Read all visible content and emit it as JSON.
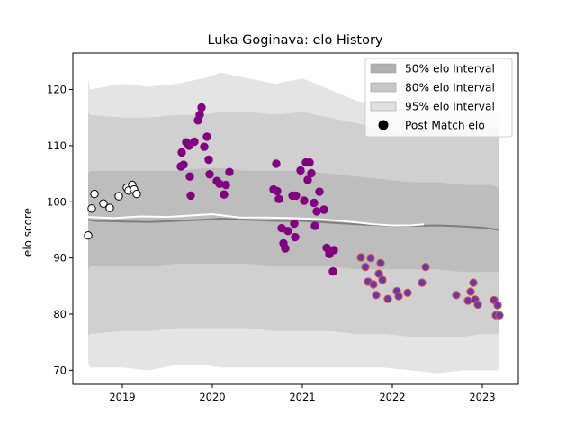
{
  "chart_data": {
    "type": "scatter",
    "title": "Luka Goginava: elo History",
    "xlabel": "",
    "ylabel": "elo score",
    "xlim": [
      2018.45,
      2023.4
    ],
    "ylim": [
      67.5,
      126.5
    ],
    "xticks": [
      2019,
      2020,
      2021,
      2022,
      2023
    ],
    "xtick_labels": [
      "2019",
      "2020",
      "2021",
      "2022",
      "2023"
    ],
    "yticks": [
      70,
      80,
      90,
      100,
      110,
      120
    ],
    "ytick_labels": [
      "70",
      "80",
      "90",
      "100",
      "110",
      "120"
    ],
    "legend": {
      "placement": "top-right",
      "entries": [
        "50% elo Interval",
        "80% elo Interval",
        "95% elo Interval",
        "Post Match elo"
      ]
    },
    "bands": [
      {
        "name": "95% elo Interval",
        "color": "#e4e4e4",
        "x": [
          2018.62,
          2018.64,
          2019.0,
          2019.3,
          2019.6,
          2019.9,
          2020.1,
          2020.4,
          2020.7,
          2021.0,
          2021.3,
          2021.6,
          2021.9,
          2022.2,
          2022.5,
          2022.8,
          2023.0,
          2023.1,
          2023.18
        ],
        "upper": [
          122,
          120,
          121,
          120.5,
          121,
          122,
          123,
          122,
          121,
          122,
          120,
          118,
          117,
          116,
          117,
          116,
          116,
          117,
          116
        ],
        "lower": [
          71.5,
          70.5,
          70.5,
          70,
          71,
          71,
          70.5,
          70.5,
          70.5,
          70.5,
          70.5,
          70.5,
          70.5,
          70,
          69.5,
          70,
          70,
          70,
          70
        ]
      },
      {
        "name": "80% elo Interval",
        "color": "#d0d0d0",
        "x": [
          2018.62,
          2018.64,
          2019.0,
          2019.3,
          2019.6,
          2019.9,
          2020.1,
          2020.4,
          2020.7,
          2021.0,
          2021.3,
          2021.6,
          2021.9,
          2022.2,
          2022.5,
          2022.8,
          2023.0,
          2023.1,
          2023.18
        ],
        "upper": [
          116,
          115.5,
          115,
          115,
          115.5,
          115.5,
          116,
          116,
          115.5,
          116,
          115,
          114,
          113,
          112.5,
          113,
          113,
          113,
          113.5,
          113
        ],
        "lower": [
          76,
          76.5,
          77,
          77,
          77.5,
          77.5,
          77.5,
          77.5,
          77,
          77,
          77,
          76.5,
          76.5,
          76,
          76,
          76,
          76.5,
          76.5,
          76.5
        ]
      },
      {
        "name": "50% elo Interval",
        "color": "#bdbdbd",
        "x": [
          2018.62,
          2018.64,
          2019.0,
          2019.3,
          2019.6,
          2019.9,
          2020.1,
          2020.4,
          2020.7,
          2021.0,
          2021.3,
          2021.6,
          2021.9,
          2022.2,
          2022.5,
          2022.8,
          2023.0,
          2023.1,
          2023.18
        ],
        "upper": [
          105,
          105.5,
          105.5,
          105.5,
          105.5,
          106,
          106,
          105.5,
          105.5,
          105.5,
          105,
          104.5,
          104,
          103.5,
          103.5,
          103,
          103,
          103,
          102.5
        ],
        "lower": [
          88,
          88.5,
          88.5,
          88.5,
          89,
          89,
          89,
          89,
          88.5,
          88.5,
          88.5,
          88,
          88,
          88,
          88,
          87.5,
          87.5,
          87.5,
          87.5
        ]
      }
    ],
    "median_line": {
      "color": "#7f7f7f",
      "x": [
        2018.62,
        2018.7,
        2019.0,
        2019.3,
        2019.6,
        2019.9,
        2020.1,
        2020.4,
        2020.7,
        2021.0,
        2021.3,
        2021.6,
        2021.9,
        2022.2,
        2022.5,
        2022.8,
        2023.0,
        2023.1,
        2023.18
      ],
      "y": [
        96.8,
        96.6,
        96.5,
        96.4,
        96.6,
        96.8,
        97.0,
        96.8,
        96.6,
        96.6,
        96.3,
        96.0,
        95.8,
        95.7,
        95.8,
        95.6,
        95.4,
        95.2,
        95.0
      ]
    },
    "white_line": {
      "color": "#ffffff",
      "x": [
        2018.62,
        2018.9,
        2019.2,
        2019.5,
        2019.8,
        2020.0,
        2020.1,
        2020.3,
        2020.6,
        2020.9,
        2021.2,
        2021.5,
        2021.8,
        2022.0,
        2022.2,
        2022.35
      ],
      "y": [
        97.3,
        97.1,
        97.4,
        97.3,
        97.6,
        97.8,
        97.6,
        97.2,
        97.2,
        97.1,
        96.9,
        96.5,
        96.0,
        95.8,
        95.8,
        96.0
      ]
    },
    "series": [
      {
        "name": "Post Match elo",
        "fill": "#ffffff",
        "edge": "#000000",
        "points": [
          [
            2018.62,
            94
          ],
          [
            2018.66,
            98.8
          ],
          [
            2018.69,
            101.4
          ],
          [
            2018.79,
            99.7
          ],
          [
            2018.86,
            98.9
          ],
          [
            2018.96,
            101
          ],
          [
            2019.05,
            102.5
          ],
          [
            2019.07,
            102
          ],
          [
            2019.11,
            103
          ],
          [
            2019.13,
            102.2
          ],
          [
            2019.16,
            101.4
          ]
        ]
      },
      {
        "name": "",
        "fill": "#800080",
        "edge": "#800080",
        "points": [
          [
            2019.65,
            106.3
          ],
          [
            2019.68,
            106.6
          ],
          [
            2019.66,
            108.8
          ],
          [
            2019.71,
            110.6
          ],
          [
            2019.74,
            110
          ],
          [
            2019.75,
            104.5
          ],
          [
            2019.76,
            101.1
          ],
          [
            2019.8,
            110.7
          ],
          [
            2019.84,
            114.5
          ],
          [
            2019.86,
            115.5
          ],
          [
            2019.88,
            116.8
          ],
          [
            2019.91,
            109.8
          ],
          [
            2019.94,
            111.6
          ],
          [
            2019.96,
            107.5
          ],
          [
            2019.97,
            104.9
          ],
          [
            2020.05,
            103.7
          ],
          [
            2020.08,
            103.2
          ],
          [
            2020.13,
            101.3
          ],
          [
            2020.15,
            103
          ],
          [
            2020.19,
            105.3
          ],
          [
            2020.68,
            102.2
          ],
          [
            2020.71,
            106.8
          ],
          [
            2020.72,
            101.9
          ],
          [
            2020.74,
            100.5
          ],
          [
            2020.77,
            95.3
          ],
          [
            2020.79,
            92.6
          ],
          [
            2020.81,
            91.7
          ],
          [
            2020.84,
            94.8
          ],
          [
            2020.89,
            101.1
          ],
          [
            2020.93,
            101.1
          ],
          [
            2020.91,
            96.1
          ],
          [
            2020.92,
            93.7
          ],
          [
            2020.98,
            105.6
          ],
          [
            2021.02,
            100.2
          ],
          [
            2021.04,
            107
          ],
          [
            2021.06,
            103.9
          ],
          [
            2021.08,
            107
          ],
          [
            2021.1,
            105.1
          ],
          [
            2021.13,
            99.8
          ],
          [
            2021.14,
            95.7
          ],
          [
            2021.16,
            98.3
          ],
          [
            2021.19,
            101.8
          ],
          [
            2021.24,
            98.6
          ],
          [
            2021.27,
            91.8
          ],
          [
            2021.3,
            90.7
          ],
          [
            2021.34,
            87.6
          ],
          [
            2021.35,
            91.4
          ]
        ]
      },
      {
        "name": "",
        "fill": "#6a3a9e",
        "edge": "#e05a5a",
        "points": [
          [
            2021.65,
            90.1
          ],
          [
            2021.7,
            88.4
          ],
          [
            2021.73,
            85.8
          ],
          [
            2021.76,
            90
          ],
          [
            2021.79,
            85.3
          ],
          [
            2021.82,
            83.4
          ],
          [
            2021.85,
            87.2
          ],
          [
            2021.87,
            89.1
          ],
          [
            2021.89,
            86.1
          ],
          [
            2021.95,
            82.7
          ],
          [
            2022.05,
            84.1
          ],
          [
            2022.07,
            83.2
          ],
          [
            2022.17,
            83.8
          ],
          [
            2022.33,
            85.6
          ],
          [
            2022.37,
            88.4
          ],
          [
            2022.71,
            83.4
          ],
          [
            2022.84,
            82.4
          ],
          [
            2022.87,
            84
          ],
          [
            2022.9,
            85.6
          ],
          [
            2022.92,
            82.6
          ],
          [
            2022.95,
            81.7
          ],
          [
            2023.13,
            82.5
          ],
          [
            2023.15,
            79.8
          ],
          [
            2023.17,
            81.6
          ],
          [
            2023.19,
            79.8
          ]
        ]
      }
    ]
  }
}
